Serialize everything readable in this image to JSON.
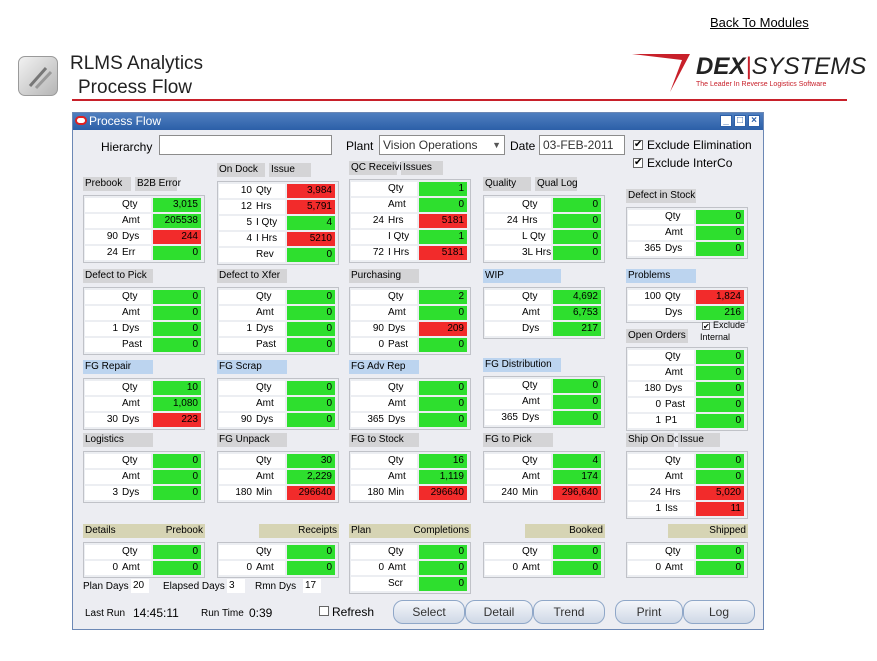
{
  "header": {
    "back_link": "Back To Modules",
    "app_title_line1": "RLMS Analytics",
    "app_title_line2": "Process Flow",
    "brand_name_bold": "DEX",
    "brand_bar": "|",
    "brand_name_rest": "SYSTEMS",
    "brand_tagline": "The Leader In Reverse Logistics Software",
    "accent_color": "#c8202a"
  },
  "window": {
    "title": "Process Flow",
    "hierarchy_label": "Hierarchy",
    "hierarchy_value": "",
    "plant_label": "Plant",
    "plant_value": "Vision Operations",
    "date_label": "Date",
    "date_value": "03-FEB-2011",
    "exclude_elimination": "Exclude Elimination",
    "exclude_interco": "Exclude InterCo"
  },
  "panels": {
    "prebook": {
      "title": "Prebook",
      "title2": "B2B Error",
      "rows": [
        [
          "",
          "Qty",
          "3,015",
          "green"
        ],
        [
          "",
          "Amt",
          "205538",
          "green"
        ],
        [
          "90",
          "Dys",
          "244",
          "red"
        ],
        [
          "24",
          "Err",
          "0",
          "green"
        ]
      ]
    },
    "ondock": {
      "title": "On Dock",
      "title2": "Issue",
      "rows": [
        [
          "10",
          "Qty",
          "3,984",
          "red"
        ],
        [
          "12",
          "Hrs",
          "5,791",
          "red"
        ],
        [
          "5",
          "I Qty",
          "4",
          "green"
        ],
        [
          "4",
          "I Hrs",
          "5210",
          "red"
        ],
        [
          "",
          "Rev",
          "0",
          "green"
        ]
      ]
    },
    "qcrec": {
      "title": "QC Receiving",
      "title2": "Issues",
      "rows": [
        [
          "",
          "Qty",
          "1",
          "green"
        ],
        [
          "",
          "Amt",
          "0",
          "green"
        ],
        [
          "24",
          "Hrs",
          "5181",
          "red"
        ],
        [
          "",
          "I Qty",
          "1",
          "green"
        ],
        [
          "72",
          "I Hrs",
          "5181",
          "red"
        ]
      ]
    },
    "quality": {
      "title": "Quality",
      "title2": "Qual Log",
      "rows": [
        [
          "",
          "Qty",
          "0",
          "green"
        ],
        [
          "24",
          "Hrs",
          "0",
          "green"
        ],
        [
          "",
          "L Qty",
          "0",
          "green"
        ],
        [
          "",
          "3L Hrs",
          "0",
          "green"
        ]
      ]
    },
    "defstock": {
      "title": "Defect in Stock",
      "rows": [
        [
          "",
          "Qty",
          "0",
          "green"
        ],
        [
          "",
          "Amt",
          "0",
          "green"
        ],
        [
          "365",
          "Dys",
          "0",
          "green"
        ]
      ]
    },
    "defpick": {
      "title": "Defect to Pick",
      "rows": [
        [
          "",
          "Qty",
          "0",
          "green"
        ],
        [
          "",
          "Amt",
          "0",
          "green"
        ],
        [
          "1",
          "Dys",
          "0",
          "green"
        ],
        [
          "",
          "Past",
          "0",
          "green"
        ]
      ]
    },
    "defxfer": {
      "title": "Defect to Xfer",
      "rows": [
        [
          "",
          "Qty",
          "0",
          "green"
        ],
        [
          "",
          "Amt",
          "0",
          "green"
        ],
        [
          "1",
          "Dys",
          "0",
          "green"
        ],
        [
          "",
          "Past",
          "0",
          "green"
        ]
      ]
    },
    "purchasing": {
      "title": "Purchasing",
      "rows": [
        [
          "",
          "Qty",
          "2",
          "green"
        ],
        [
          "",
          "Amt",
          "0",
          "green"
        ],
        [
          "90",
          "Dys",
          "209",
          "red"
        ],
        [
          "0",
          "Past",
          "0",
          "green"
        ]
      ]
    },
    "wip": {
      "title": "WIP",
      "rows": [
        [
          "",
          "Qty",
          "4,692",
          "green"
        ],
        [
          "",
          "Amt",
          "6,753",
          "green"
        ],
        [
          "",
          "Dys",
          "217",
          "green"
        ]
      ]
    },
    "problems": {
      "title": "Problems",
      "rows": [
        [
          "100",
          "Qty",
          "1,824",
          "red"
        ],
        [
          "",
          "Dys",
          "216",
          "green"
        ]
      ]
    },
    "openorders": {
      "title": "Open Orders",
      "exclude": "Exclude",
      "internal": "Internal",
      "rows": [
        [
          "",
          "Qty",
          "0",
          "green"
        ],
        [
          "",
          "Amt",
          "0",
          "green"
        ],
        [
          "180",
          "Dys",
          "0",
          "green"
        ],
        [
          "0",
          "Past",
          "0",
          "green"
        ],
        [
          "1",
          "P1",
          "0",
          "green"
        ]
      ]
    },
    "fgrepair": {
      "title": "FG Repair",
      "rows": [
        [
          "",
          "Qty",
          "10",
          "green"
        ],
        [
          "",
          "Amt",
          "1,080",
          "green"
        ],
        [
          "30",
          "Dys",
          "223",
          "red"
        ]
      ]
    },
    "fgscrap": {
      "title": "FG Scrap",
      "rows": [
        [
          "",
          "Qty",
          "0",
          "green"
        ],
        [
          "",
          "Amt",
          "0",
          "green"
        ],
        [
          "90",
          "Dys",
          "0",
          "green"
        ]
      ]
    },
    "fgadvrep": {
      "title": "FG Adv Rep",
      "rows": [
        [
          "",
          "Qty",
          "0",
          "green"
        ],
        [
          "",
          "Amt",
          "0",
          "green"
        ],
        [
          "365",
          "Dys",
          "0",
          "green"
        ]
      ]
    },
    "fgdist": {
      "title": "FG Distribution",
      "rows": [
        [
          "",
          "Qty",
          "0",
          "green"
        ],
        [
          "",
          "Amt",
          "0",
          "green"
        ],
        [
          "365",
          "Dys",
          "0",
          "green"
        ]
      ]
    },
    "logistics": {
      "title": "Logistics",
      "rows": [
        [
          "",
          "Qty",
          "0",
          "green"
        ],
        [
          "",
          "Amt",
          "0",
          "green"
        ],
        [
          "3",
          "Dys",
          "0",
          "green"
        ]
      ]
    },
    "fgunpack": {
      "title": "FG Unpack",
      "rows": [
        [
          "",
          "Qty",
          "30",
          "green"
        ],
        [
          "",
          "Amt",
          "2,229",
          "green"
        ],
        [
          "180",
          "Min",
          "296640",
          "red"
        ]
      ]
    },
    "fgtostock": {
      "title": "FG to Stock",
      "rows": [
        [
          "",
          "Qty",
          "16",
          "green"
        ],
        [
          "",
          "Amt",
          "1,119",
          "green"
        ],
        [
          "180",
          "Min",
          "296640",
          "red"
        ]
      ]
    },
    "fgtopick": {
      "title": "FG to Pick",
      "rows": [
        [
          "",
          "Qty",
          "4",
          "green"
        ],
        [
          "",
          "Amt",
          "174",
          "green"
        ],
        [
          "240",
          "Min",
          "296,640",
          "red"
        ]
      ]
    },
    "shipondock": {
      "title": "Ship On Dock",
      "title2": "Issue",
      "rows": [
        [
          "",
          "Qty",
          "0",
          "green"
        ],
        [
          "",
          "Amt",
          "0",
          "green"
        ],
        [
          "24",
          "Hrs",
          "5,020",
          "red"
        ],
        [
          "1",
          "Iss",
          "11",
          "red"
        ]
      ]
    }
  },
  "bottom": {
    "details": {
      "title": "Details",
      "title2": "Prebook",
      "rows": [
        [
          "",
          "Qty",
          "0",
          "green"
        ],
        [
          "0",
          "Amt",
          "0",
          "green"
        ]
      ]
    },
    "receipts": {
      "title2": "Receipts",
      "rows": [
        [
          "",
          "Qty",
          "0",
          "green"
        ],
        [
          "0",
          "Amt",
          "0",
          "green"
        ]
      ]
    },
    "plan": {
      "title": "Plan",
      "title2": "Completions",
      "rows": [
        [
          "",
          "Qty",
          "0",
          "green"
        ],
        [
          "0",
          "Amt",
          "0",
          "green"
        ],
        [
          "",
          "Scr",
          "0",
          "green"
        ]
      ]
    },
    "booked": {
      "title2": "Booked",
      "rows": [
        [
          "",
          "Qty",
          "0",
          "green"
        ],
        [
          "0",
          "Amt",
          "0",
          "green"
        ]
      ]
    },
    "shipped": {
      "title2": "Shipped",
      "rows": [
        [
          "",
          "Qty",
          "0",
          "green"
        ],
        [
          "0",
          "Amt",
          "0",
          "green"
        ]
      ]
    }
  },
  "footer": {
    "plan_days_label": "Plan Days",
    "plan_days": "20",
    "elapsed_days_label": "Elapsed Days",
    "elapsed_days": "3",
    "rmn_dys_label": "Rmn Dys",
    "rmn_dys": "17",
    "last_run_label": "Last Run",
    "last_run": "14:45:11",
    "run_time_label": "Run Time",
    "run_time": "0:39",
    "refresh_label": "Refresh",
    "buttons": [
      "Select",
      "Detail",
      "Trend",
      "Print",
      "Log"
    ]
  }
}
